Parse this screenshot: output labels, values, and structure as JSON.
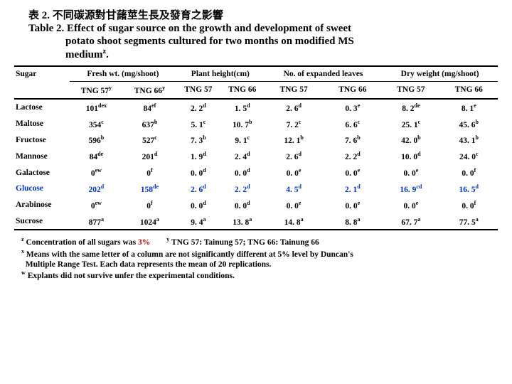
{
  "title_zh": "表 2. 不同碳源對甘藷莖生長及發育之影響",
  "title_en_l1": "Table 2. Effect of sugar source on the growth and development of sweet",
  "title_en_l2": "potato shoot segments cultured for two months on modified MS",
  "title_en_l3": "medium",
  "title_en_sup": "z",
  "cols": {
    "sugar": "Sugar",
    "fresh": "Fresh wt. (mg/shoot)",
    "height": "Plant height(cm)",
    "leaves": "No. of expanded leaves",
    "dry": "Dry weight (mg/shoot)",
    "t57": "TNG 57",
    "t66": "TNG 66",
    "t57y": "TNG 57",
    "t66y": "TNG 66",
    "y": "y"
  },
  "rows": [
    {
      "label": "Lactose",
      "c": [
        "101",
        "dex",
        "84",
        "ef",
        "2. 2",
        "d",
        "1. 5",
        "d",
        "2. 6",
        "d",
        "0. 3",
        "e",
        "8. 2",
        "de",
        "8. 1",
        "e"
      ]
    },
    {
      "label": "Maltose",
      "c": [
        "354",
        "c",
        "637",
        "b",
        "5. 1",
        "c",
        "10. 7",
        "b",
        "7. 2",
        "c",
        "6. 6",
        "c",
        "25. 1",
        "c",
        "45. 6",
        "b"
      ]
    },
    {
      "label": "Fructose",
      "c": [
        "596",
        "b",
        "527",
        "c",
        "7. 3",
        "b",
        "9. 1",
        "c",
        "12. 1",
        "b",
        "7. 6",
        "b",
        "42. 0",
        "b",
        "43. 1",
        "b"
      ]
    },
    {
      "label": "Mannose",
      "c": [
        "84",
        "de",
        "201",
        "d",
        "1. 9",
        "d",
        "2. 4",
        "d",
        "2. 6",
        "d",
        "2. 2",
        "d",
        "10. 0",
        "d",
        "24. 0",
        "c"
      ]
    },
    {
      "label": "Galactose",
      "c": [
        "0",
        "ew",
        "0",
        "f",
        "0. 0",
        "d",
        "0. 0",
        "d",
        "0. 0",
        "e",
        "0. 0",
        "e",
        "0. 0",
        "e",
        "0. 0",
        "f"
      ]
    },
    {
      "label": "Glucose",
      "c": [
        "202",
        "d",
        "158",
        "de",
        "2. 6",
        "d",
        "2. 2",
        "d",
        "4. 5",
        "d",
        "2. 1",
        "d",
        "16. 9",
        "cd",
        "16. 5",
        "d"
      ]
    },
    {
      "label": "Arabinose",
      "c": [
        "0",
        "ew",
        "0",
        "f",
        "0. 0",
        "d",
        "0. 0",
        "d",
        "0. 0",
        "e",
        "0. 0",
        "e",
        "0. 0",
        "e",
        "0. 0",
        "f"
      ]
    },
    {
      "label": "Sucrose",
      "c": [
        "877",
        "a",
        "1024",
        "a",
        "9. 4",
        "a",
        "13. 8",
        "a",
        "14. 8",
        "a",
        "8. 8",
        "a",
        "67. 7",
        "a",
        "77. 5",
        "a"
      ]
    }
  ],
  "foot": {
    "z1": "z",
    "z2": " Concentration of all sugars was ",
    "z3": "3%",
    "gap": "        ",
    "y1": "y",
    "y2": " TNG 57: Tainung 57; TNG 66: Tainung 66",
    "x1": "x",
    "x2": " Means with the same letter of a column are not significantly different at 5% level by Duncan's",
    "x3": "  Multiple Range Test. Each data represents the mean of 20 replications.",
    "w1": "w",
    "w2": " Explants did not survive unfer the experimental conditions."
  }
}
